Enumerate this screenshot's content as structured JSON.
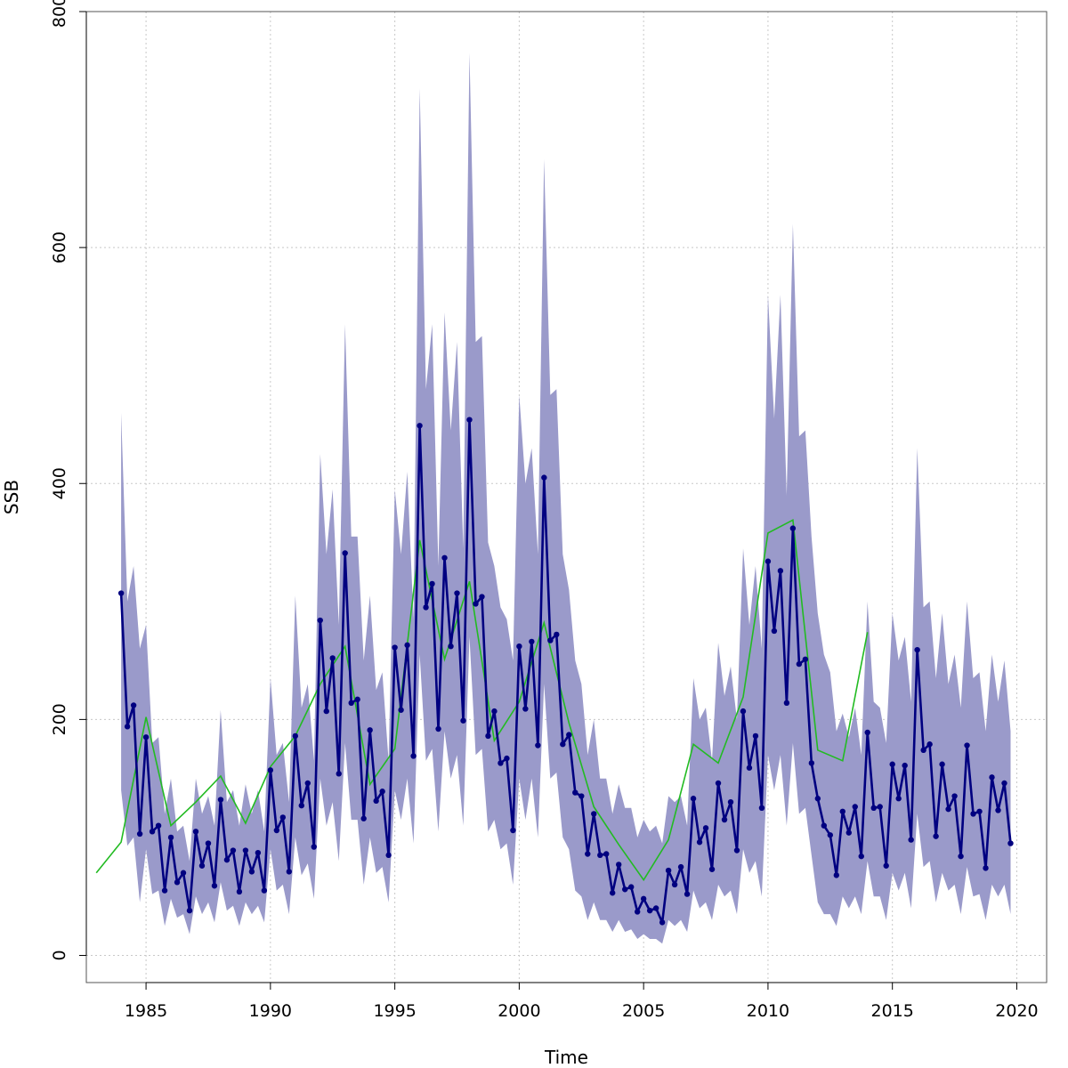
{
  "chart_data": {
    "type": "line",
    "title": "",
    "xlabel": "Time",
    "ylabel": "SSB",
    "xlim": [
      1982.6,
      2021.2
    ],
    "ylim": [
      -23,
      800
    ],
    "xticks": [
      1985,
      1990,
      1995,
      2000,
      2005,
      2010,
      2015,
      2020
    ],
    "yticks": [
      0,
      200,
      400,
      600,
      800
    ],
    "grid": true,
    "legend": "none",
    "colors": {
      "band": "#9a9aca",
      "estimate": "#000080",
      "observed": "#22bb22",
      "grid": "#c8c8c8",
      "axis": "#000000"
    },
    "series": [
      {
        "style": "points-and-line",
        "x": [
          1984.0,
          1984.25,
          1984.5,
          1984.75,
          1985.0,
          1985.25,
          1985.5,
          1985.75,
          1986.0,
          1986.25,
          1986.5,
          1986.75,
          1987.0,
          1987.25,
          1987.5,
          1987.75,
          1988.0,
          1988.25,
          1988.5,
          1988.75,
          1989.0,
          1989.25,
          1989.5,
          1989.75,
          1990.0,
          1990.25,
          1990.5,
          1990.75,
          1991.0,
          1991.25,
          1991.5,
          1991.75,
          1992.0,
          1992.25,
          1992.5,
          1992.75,
          1993.0,
          1993.25,
          1993.5,
          1993.75,
          1994.0,
          1994.25,
          1994.5,
          1994.75,
          1995.0,
          1995.25,
          1995.5,
          1995.75,
          1996.0,
          1996.25,
          1996.5,
          1996.75,
          1997.0,
          1997.25,
          1997.5,
          1997.75,
          1998.0,
          1998.25,
          1998.5,
          1998.75,
          1999.0,
          1999.25,
          1999.5,
          1999.75,
          2000.0,
          2000.25,
          2000.5,
          2000.75,
          2001.0,
          2001.25,
          2001.5,
          2001.75,
          2002.0,
          2002.25,
          2002.5,
          2002.75,
          2003.0,
          2003.25,
          2003.5,
          2003.75,
          2004.0,
          2004.25,
          2004.5,
          2004.75,
          2005.0,
          2005.25,
          2005.5,
          2005.75,
          2006.0,
          2006.25,
          2006.5,
          2006.75,
          2007.0,
          2007.25,
          2007.5,
          2007.75,
          2008.0,
          2008.25,
          2008.5,
          2008.75,
          2009.0,
          2009.25,
          2009.5,
          2009.75,
          2010.0,
          2010.25,
          2010.5,
          2010.75,
          2011.0,
          2011.25,
          2011.5,
          2011.75,
          2012.0,
          2012.25,
          2012.5,
          2012.75,
          2013.0,
          2013.25,
          2013.5,
          2013.75,
          2014.0,
          2014.25,
          2014.5,
          2014.75,
          2015.0,
          2015.25,
          2015.5,
          2015.75,
          2016.0,
          2016.25,
          2016.5,
          2016.75,
          2017.0,
          2017.25,
          2017.5,
          2017.75,
          2018.0,
          2018.25,
          2018.5,
          2018.75,
          2019.0,
          2019.25,
          2019.5,
          2019.75
        ],
        "y": [
          307,
          194,
          212,
          103,
          185,
          105,
          110,
          55,
          100,
          62,
          70,
          38,
          105,
          76,
          95,
          59,
          132,
          81,
          89,
          54,
          89,
          71,
          87,
          55,
          157,
          106,
          117,
          71,
          186,
          127,
          146,
          92,
          284,
          207,
          252,
          154,
          341,
          214,
          217,
          116,
          191,
          131,
          139,
          85,
          261,
          208,
          263,
          169,
          449,
          295,
          315,
          192,
          337,
          262,
          307,
          199,
          454,
          298,
          304,
          186,
          207,
          163,
          167,
          106,
          262,
          209,
          266,
          178,
          405,
          267,
          272,
          179,
          187,
          138,
          135,
          86,
          120,
          85,
          86,
          53,
          77,
          56,
          58,
          37,
          48,
          38,
          40,
          28,
          72,
          60,
          75,
          52,
          133,
          96,
          108,
          73,
          146,
          115,
          130,
          89,
          207,
          159,
          186,
          125,
          334,
          275,
          326,
          214,
          362,
          247,
          251,
          163,
          133,
          110,
          102,
          68,
          122,
          104,
          126,
          84,
          189,
          125,
          126,
          76,
          162,
          133,
          161,
          98,
          259,
          174,
          179,
          101,
          162,
          124,
          135,
          84,
          178,
          120,
          122,
          74,
          151,
          123,
          146,
          95
        ],
        "ci_upper": [
          460,
          300,
          330,
          260,
          280,
          180,
          185,
          120,
          150,
          105,
          110,
          80,
          150,
          120,
          135,
          110,
          208,
          130,
          140,
          110,
          145,
          120,
          140,
          105,
          235,
          170,
          180,
          130,
          305,
          210,
          230,
          165,
          425,
          340,
          395,
          280,
          535,
          355,
          355,
          250,
          305,
          225,
          240,
          165,
          395,
          340,
          410,
          285,
          735,
          480,
          535,
          330,
          545,
          445,
          520,
          345,
          765,
          520,
          525,
          350,
          330,
          295,
          285,
          250,
          475,
          400,
          430,
          340,
          675,
          475,
          480,
          340,
          310,
          250,
          230,
          170,
          200,
          150,
          150,
          120,
          145,
          125,
          125,
          100,
          115,
          105,
          110,
          95,
          135,
          130,
          135,
          110,
          235,
          200,
          210,
          165,
          265,
          220,
          245,
          200,
          345,
          280,
          330,
          260,
          560,
          455,
          560,
          390,
          620,
          440,
          445,
          355,
          290,
          255,
          240,
          190,
          205,
          185,
          210,
          170,
          300,
          215,
          210,
          180,
          290,
          250,
          270,
          215,
          430,
          295,
          300,
          235,
          290,
          230,
          255,
          210,
          300,
          235,
          240,
          190,
          255,
          215,
          250,
          190
        ],
        "ci_lower": [
          140,
          93,
          100,
          45,
          90,
          52,
          55,
          25,
          48,
          32,
          35,
          18,
          50,
          35,
          45,
          28,
          62,
          38,
          42,
          25,
          45,
          35,
          42,
          28,
          90,
          55,
          60,
          35,
          100,
          68,
          78,
          48,
          150,
          110,
          130,
          80,
          180,
          115,
          115,
          60,
          100,
          70,
          75,
          45,
          140,
          115,
          150,
          95,
          255,
          165,
          175,
          105,
          190,
          150,
          170,
          110,
          270,
          170,
          175,
          105,
          115,
          90,
          95,
          60,
          150,
          115,
          150,
          100,
          230,
          150,
          155,
          100,
          90,
          55,
          50,
          30,
          45,
          30,
          30,
          20,
          30,
          20,
          22,
          14,
          18,
          14,
          14,
          10,
          30,
          25,
          30,
          20,
          55,
          40,
          45,
          30,
          60,
          50,
          55,
          35,
          90,
          70,
          80,
          50,
          170,
          140,
          170,
          110,
          180,
          120,
          125,
          85,
          45,
          35,
          35,
          25,
          50,
          40,
          50,
          35,
          80,
          50,
          50,
          30,
          70,
          55,
          70,
          40,
          120,
          75,
          80,
          45,
          70,
          55,
          60,
          35,
          75,
          50,
          52,
          30,
          60,
          50,
          60,
          35
        ]
      },
      {
        "style": "line",
        "x": [
          1983,
          1984,
          1985,
          1986,
          1987,
          1988,
          1989,
          1990,
          1991,
          1992,
          1993,
          1994,
          1995,
          1996,
          1997,
          1998,
          1999,
          2000,
          2001,
          2002,
          2003,
          2004,
          2005,
          2006,
          2007,
          2008,
          2009,
          2010,
          2011,
          2012,
          2013,
          2014
        ],
        "y": [
          70,
          96,
          202,
          110,
          130,
          152,
          112,
          160,
          186,
          230,
          262,
          145,
          175,
          352,
          251,
          317,
          182,
          215,
          282,
          197,
          126,
          94,
          64,
          98,
          179,
          163,
          219,
          358,
          369,
          174,
          165,
          274
        ]
      }
    ]
  }
}
